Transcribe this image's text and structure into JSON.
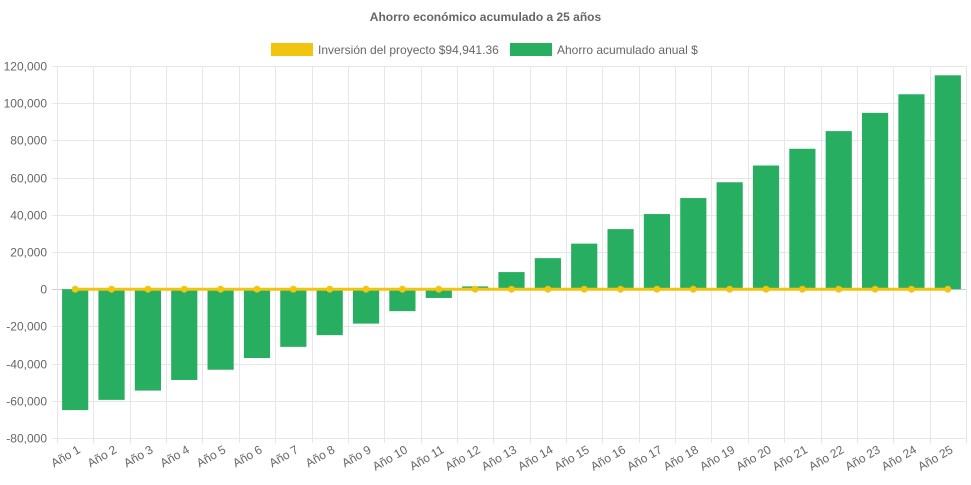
{
  "chart_data": {
    "type": "bar",
    "title": "Ahorro económico acumulado a 25 años",
    "xlabel": "",
    "ylabel": "",
    "ylim": [
      -80000,
      120000
    ],
    "yticks": [
      -80000,
      -60000,
      -40000,
      -20000,
      0,
      20000,
      40000,
      60000,
      80000,
      100000,
      120000
    ],
    "ytick_labels": [
      "-80,000",
      "-60,000",
      "-40,000",
      "-20,000",
      "0",
      "20,000",
      "40,000",
      "60,000",
      "80,000",
      "100,000",
      "120,000"
    ],
    "grid": true,
    "legend_position": "top",
    "categories": [
      "Año 1",
      "Año 2",
      "Año 3",
      "Año 4",
      "Año 5",
      "Año 6",
      "Año 7",
      "Año 8",
      "Año 9",
      "Año 10",
      "Año 11",
      "Año 12",
      "Año 13",
      "Año 14",
      "Año 15",
      "Año 16",
      "Año 17",
      "Año 18",
      "Año 19",
      "Año 20",
      "Año 21",
      "Año 22",
      "Año 23",
      "Año 24",
      "Año 25"
    ],
    "series": [
      {
        "name": "Inversión del proyecto $94,941.36",
        "type": "line",
        "color": "#f1c40f",
        "values": [
          0,
          0,
          0,
          0,
          0,
          0,
          0,
          0,
          0,
          0,
          0,
          0,
          0,
          0,
          0,
          0,
          0,
          0,
          0,
          0,
          0,
          0,
          0,
          0,
          0
        ]
      },
      {
        "name": "Ahorro acumulado anual $",
        "type": "bar",
        "color": "#27ae60",
        "values": [
          -65000,
          -59500,
          -54500,
          -48800,
          -43300,
          -37000,
          -31000,
          -24700,
          -18500,
          -11800,
          -4700,
          1500,
          9200,
          16700,
          24500,
          32300,
          40400,
          49000,
          57500,
          66500,
          75500,
          85000,
          94800,
          104800,
          115000
        ]
      }
    ]
  }
}
